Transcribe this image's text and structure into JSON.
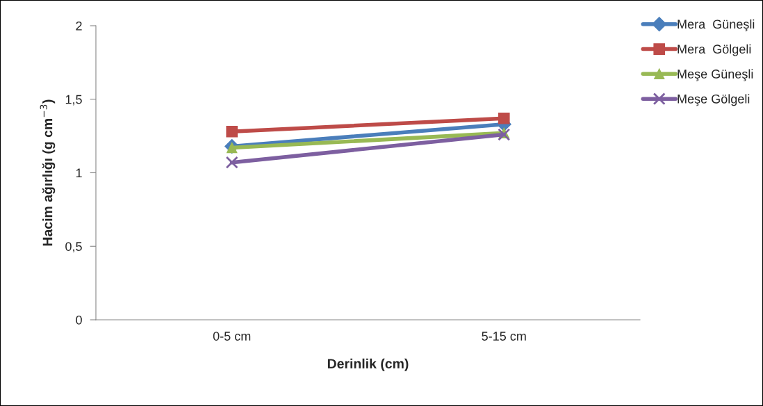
{
  "chart_data": {
    "type": "line",
    "xlabel": "Derinlik (cm)",
    "ylabel": "Hacim ağırlığı (g cm$^{−3}$)",
    "categories": [
      "0-5 cm",
      "5-15 cm"
    ],
    "series": [
      {
        "name": "Mera  Güneşli",
        "color": "#4a7ebb",
        "marker": "diamond",
        "values": [
          1.18,
          1.33
        ]
      },
      {
        "name": "Mera  Gölgeli",
        "color": "#be4b48",
        "marker": "square",
        "values": [
          1.28,
          1.37
        ]
      },
      {
        "name": "Meşe Güneşli",
        "color": "#98b954",
        "marker": "triangle",
        "values": [
          1.17,
          1.27
        ]
      },
      {
        "name": "Meşe Gölgeli",
        "color": "#7d5fa0",
        "marker": "cross",
        "values": [
          1.07,
          1.26
        ]
      }
    ],
    "ylim": [
      0,
      2
    ],
    "yticks": [
      0,
      {
        "value": 0.5,
        "label": "0,5"
      },
      1,
      {
        "value": 1.5,
        "label": "1,5"
      },
      2
    ],
    "grid": false,
    "legend": "top right"
  }
}
